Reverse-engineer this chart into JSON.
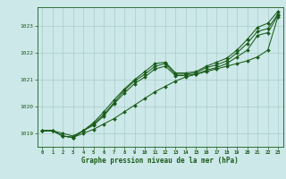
{
  "title": "Graphe pression niveau de la mer (hPa)",
  "bg_color": "#cce8e8",
  "grid_color": "#aacccc",
  "line_color": "#1a5c1a",
  "marker_color": "#1a5c1a",
  "label_color": "#1a5c1a",
  "xlim": [
    -0.5,
    23.5
  ],
  "ylim": [
    1018.5,
    1023.7
  ],
  "yticks": [
    1019,
    1020,
    1021,
    1022,
    1023
  ],
  "xticks": [
    0,
    1,
    2,
    3,
    4,
    5,
    6,
    7,
    8,
    9,
    10,
    11,
    12,
    13,
    14,
    15,
    16,
    17,
    18,
    19,
    20,
    21,
    22,
    23
  ],
  "series": [
    [
      1019.1,
      1019.1,
      1018.9,
      1018.85,
      1019.0,
      1019.15,
      1019.35,
      1019.55,
      1019.8,
      1020.05,
      1020.3,
      1020.55,
      1020.75,
      1020.95,
      1021.1,
      1021.2,
      1021.3,
      1021.4,
      1021.5,
      1021.6,
      1021.7,
      1021.85,
      1022.1,
      1023.35
    ],
    [
      1019.1,
      1019.1,
      1018.9,
      1018.85,
      1019.1,
      1019.3,
      1019.65,
      1020.1,
      1020.5,
      1020.85,
      1021.1,
      1021.4,
      1021.5,
      1021.15,
      1021.15,
      1021.2,
      1021.35,
      1021.45,
      1021.6,
      1021.85,
      1022.1,
      1022.65,
      1022.75,
      1023.4
    ],
    [
      1019.1,
      1019.1,
      1018.9,
      1018.85,
      1019.1,
      1019.35,
      1019.7,
      1020.15,
      1020.6,
      1020.95,
      1021.2,
      1021.5,
      1021.6,
      1021.2,
      1021.2,
      1021.25,
      1021.45,
      1021.55,
      1021.7,
      1022.0,
      1022.35,
      1022.8,
      1022.9,
      1023.45
    ],
    [
      1019.1,
      1019.1,
      1019.0,
      1018.9,
      1019.1,
      1019.4,
      1019.8,
      1020.25,
      1020.65,
      1021.0,
      1021.3,
      1021.6,
      1021.65,
      1021.25,
      1021.25,
      1021.3,
      1021.5,
      1021.65,
      1021.8,
      1022.1,
      1022.5,
      1022.95,
      1023.1,
      1023.55
    ]
  ]
}
